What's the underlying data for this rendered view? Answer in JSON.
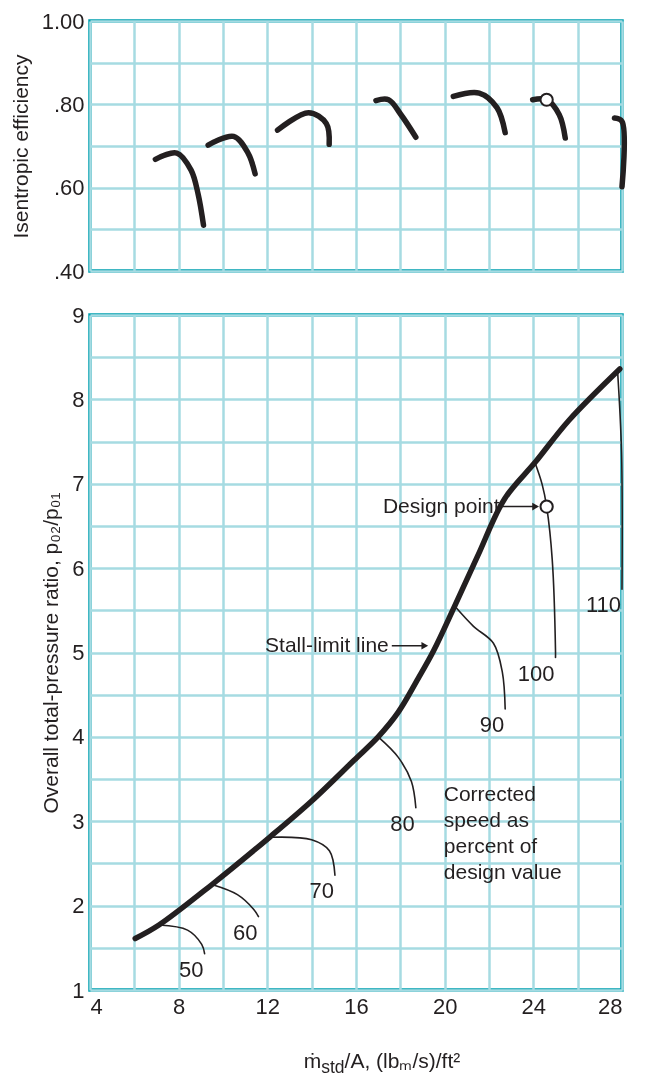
{
  "chart_data": [
    {
      "type": "line",
      "ylabel": "Isentropic efficiency",
      "xlim": [
        4,
        28
      ],
      "xticks": [
        4,
        {
          "value": 6,
          "label": null
        },
        8,
        {
          "value": 10,
          "label": null
        },
        12,
        {
          "value": 14,
          "label": null
        },
        16,
        {
          "value": 18,
          "label": null
        },
        20,
        {
          "value": 22,
          "label": null
        },
        24,
        {
          "value": 26,
          "label": null
        },
        28
      ],
      "ylim": [
        0.4,
        1.0
      ],
      "yticks": [
        {
          "value": 0.4,
          "label": ".40"
        },
        {
          "value": 0.5,
          "label": null
        },
        {
          "value": 0.6,
          "label": ".60"
        },
        {
          "value": 0.7,
          "label": null
        },
        {
          "value": 0.8,
          "label": ".80"
        },
        {
          "value": 0.9,
          "label": null
        },
        {
          "value": 1.0,
          "label": "1.00"
        }
      ],
      "grid": true,
      "tick_labels": "y",
      "series": [
        {
          "color": "#231f20",
          "x": [
            6.95,
            7.92,
            8.56,
            8.88,
            9.12
          ],
          "values": [
            0.668,
            0.683,
            0.642,
            0.584,
            0.51
          ]
        },
        {
          "color": "#231f20",
          "x": [
            9.33,
            10.48,
            11.13,
            11.45
          ],
          "values": [
            0.702,
            0.723,
            0.683,
            0.633
          ]
        },
        {
          "color": "#231f20",
          "x": [
            12.46,
            13.86,
            14.66,
            14.79
          ],
          "values": [
            0.738,
            0.78,
            0.754,
            0.704
          ]
        },
        {
          "color": "#231f20",
          "x": [
            16.9,
            17.47,
            18.03,
            18.7
          ],
          "values": [
            0.809,
            0.811,
            0.775,
            0.721
          ]
        },
        {
          "color": "#231f20",
          "x": [
            20.39,
            21.56,
            22.36,
            22.73
          ],
          "values": [
            0.819,
            0.827,
            0.792,
            0.732
          ]
        },
        {
          "color": "#231f20",
          "x": [
            23.97,
            24.6,
            25.17,
            25.44
          ],
          "values": [
            0.811,
            0.811,
            0.775,
            0.719
          ]
        },
        {
          "color": "#231f20",
          "x": [
            27.66,
            28,
            28
          ],
          "values": [
            0.767,
            0.759,
            0.602
          ]
        },
        {
          "type": "scatter",
          "marker": "circle",
          "color": "#231f20",
          "x": [
            24.6
          ],
          "values": [
            0.811
          ]
        }
      ]
    },
    {
      "type": "line",
      "xlabel": "ṁ$_{std}$/A, (lbₘ/s)/ft²",
      "ylabel": "Overall total-pressure ratio, p₀₂/p₀₁",
      "xlim": [
        4,
        28
      ],
      "xticks": [
        4,
        {
          "value": 6,
          "label": null
        },
        8,
        {
          "value": 10,
          "label": null
        },
        12,
        {
          "value": 14,
          "label": null
        },
        16,
        {
          "value": 18,
          "label": null
        },
        20,
        {
          "value": 22,
          "label": null
        },
        24,
        {
          "value": 26,
          "label": null
        },
        28
      ],
      "ylim": [
        1,
        9
      ],
      "yticks": [
        1,
        {
          "value": 1.5,
          "label": null
        },
        2,
        {
          "value": 2.5,
          "label": null
        },
        3,
        {
          "value": 3.5,
          "label": null
        },
        4,
        {
          "value": 4.5,
          "label": null
        },
        5,
        {
          "value": 5.5,
          "label": null
        },
        6,
        {
          "value": 6.5,
          "label": null
        },
        7,
        {
          "value": 7.5,
          "label": null
        },
        8,
        {
          "value": 8.5,
          "label": null
        },
        9
      ],
      "grid": true,
      "series": [
        {
          "color": "#231f20",
          "x": [
            6.04,
            7.11,
            9.5,
            12.1,
            14.0,
            15.9,
            17.0,
            17.9,
            18.8,
            19.5,
            20.45,
            21.5,
            22.7,
            24.1,
            25.6,
            27.9
          ],
          "values": [
            1.61,
            1.77,
            2.25,
            2.81,
            3.24,
            3.72,
            4.0,
            4.29,
            4.69,
            5.02,
            5.55,
            6.15,
            6.82,
            7.26,
            7.75,
            8.36
          ]
        },
        {
          "name": "50",
          "color": "#231f20",
          "x": [
            7.11,
            8.4,
            9.04,
            9.17
          ],
          "values": [
            1.77,
            1.71,
            1.54,
            1.43
          ]
        },
        {
          "name": "60",
          "color": "#231f20",
          "x": [
            9.5,
            10.65,
            11.37,
            11.6
          ],
          "values": [
            2.25,
            2.13,
            1.96,
            1.87
          ]
        },
        {
          "name": "70",
          "color": "#231f20",
          "x": [
            12.1,
            14.0,
            14.8,
            15.05
          ],
          "values": [
            2.81,
            2.78,
            2.65,
            2.36
          ]
        },
        {
          "name": "80",
          "color": "#231f20",
          "x": [
            17.0,
            17.9,
            18.5,
            18.7
          ],
          "values": [
            4.0,
            3.76,
            3.47,
            3.16
          ]
        },
        {
          "name": "90",
          "color": "#231f20",
          "x": [
            20.45,
            21.3,
            22.2,
            22.6,
            22.73
          ],
          "values": [
            5.55,
            5.31,
            5.11,
            4.77,
            4.33
          ]
        },
        {
          "name": "100",
          "color": "#231f20",
          "x": [
            24.06,
            24.4,
            24.6,
            24.85,
            25.0,
            25.0
          ],
          "values": [
            7.26,
            6.99,
            6.73,
            6.11,
            5.02,
            4.94
          ]
        },
        {
          "name": "110",
          "color": "#231f20",
          "x": [
            27.8,
            27.98,
            28
          ],
          "values": [
            8.34,
            7.37,
            5.75
          ]
        },
        {
          "type": "scatter",
          "marker": "circle",
          "color": "#231f20",
          "x": [
            24.6
          ],
          "values": [
            6.73
          ]
        }
      ],
      "annotations": [
        {
          "text": "Design point",
          "x": 24.6,
          "y": 6.73
        },
        {
          "text": "Stall-limit line",
          "x": 19.6,
          "y": 5.08
        },
        "Corrected speed as percent of design value"
      ]
    }
  ]
}
